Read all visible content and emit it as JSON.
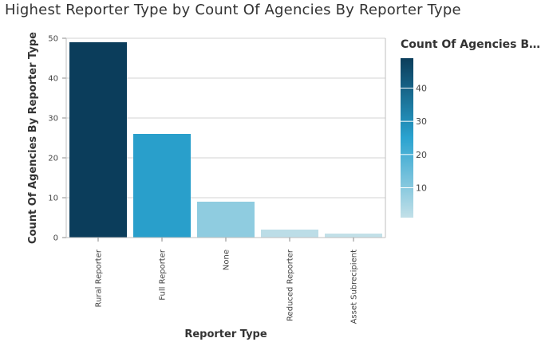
{
  "chart_data": {
    "type": "bar",
    "title": "Highest Reporter Type by Count Of Agencies By Reporter Type",
    "xlabel": "Reporter Type",
    "ylabel": "Count Of Agencies By Reporter Type",
    "categories": [
      "Rural Reporter",
      "Full Reporter",
      "None",
      "Reduced Reporter",
      "Asset Subrecipient"
    ],
    "values": [
      49,
      26,
      9,
      2,
      1
    ],
    "ylim": [
      0,
      50
    ],
    "yticks": [
      0,
      10,
      20,
      30,
      40,
      50
    ],
    "grid": true,
    "legend": {
      "title": "Count Of Agencies B…",
      "placement": "right",
      "type": "gradient",
      "ticks": [
        10,
        20,
        30,
        40
      ],
      "range": [
        1,
        49
      ],
      "colors": [
        "#c2e0e8",
        "#2aa3d0",
        "#0b3d5b"
      ]
    }
  }
}
